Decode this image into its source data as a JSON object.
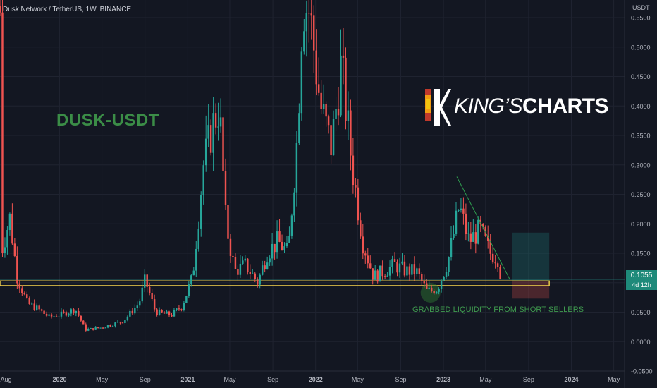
{
  "header": {
    "symbol_line": "Dusk Network / TetherUS, 1W, BINANCE"
  },
  "pair_label": "DUSK-USDT",
  "annotation": "GRABBED LIQUIDITY FROM SHORT SELLERS",
  "brand": {
    "light": "KING’S",
    "bold": "CHARTS"
  },
  "price_badge": {
    "price": "0.1055",
    "countdown": "4d 12h"
  },
  "colors": {
    "background": "#131722",
    "up": "#26a69a",
    "down": "#ef5350",
    "support": "#e8c84a",
    "label_green": "#3b8d47"
  },
  "chart_data": {
    "type": "candlestick",
    "yaxis": {
      "unit": "USDT",
      "range": [
        -0.05,
        0.58
      ],
      "ticks": [
        -0.05,
        0,
        0.05,
        0.1,
        0.15,
        0.2,
        0.25,
        0.3,
        0.35,
        0.4,
        0.45,
        0.5,
        0.55
      ],
      "tick_labels": [
        "-0.0500",
        "0.0000",
        "0.0500",
        "0.1000",
        "0.1500",
        "0.2000",
        "0.2500",
        "0.3000",
        "0.3500",
        "0.4000",
        "0.4500",
        "0.5000",
        "0.5500"
      ]
    },
    "xaxis": {
      "range": [
        "2019-07-15",
        "2024-06-01"
      ],
      "ticks": [
        {
          "date": "2019-08-01",
          "label": "Aug"
        },
        {
          "date": "2020-01-01",
          "label": "2020"
        },
        {
          "date": "2020-05-01",
          "label": "May"
        },
        {
          "date": "2020-09-01",
          "label": "Sep"
        },
        {
          "date": "2021-01-01",
          "label": "2021"
        },
        {
          "date": "2021-05-01",
          "label": "May"
        },
        {
          "date": "2021-09-01",
          "label": "Sep"
        },
        {
          "date": "2022-01-01",
          "label": "2022"
        },
        {
          "date": "2022-05-01",
          "label": "May"
        },
        {
          "date": "2022-09-01",
          "label": "Sep"
        },
        {
          "date": "2023-01-01",
          "label": "2023"
        },
        {
          "date": "2023-05-01",
          "label": "May"
        },
        {
          "date": "2023-09-01",
          "label": "Sep"
        },
        {
          "date": "2024-01-01",
          "label": "2024"
        },
        {
          "date": "2024-05-01",
          "label": "May"
        }
      ]
    },
    "close_path": [
      [
        "2019-07-15",
        0.56
      ],
      [
        "2019-07-22",
        0.16
      ],
      [
        "2019-08-12",
        0.21
      ],
      [
        "2019-09-02",
        0.11
      ],
      [
        "2019-10-01",
        0.065
      ],
      [
        "2019-11-01",
        0.055
      ],
      [
        "2019-12-01",
        0.042
      ],
      [
        "2020-01-01",
        0.045
      ],
      [
        "2020-02-15",
        0.055
      ],
      [
        "2020-03-15",
        0.02
      ],
      [
        "2020-05-01",
        0.024
      ],
      [
        "2020-07-01",
        0.035
      ],
      [
        "2020-08-15",
        0.065
      ],
      [
        "2020-09-01",
        0.105
      ],
      [
        "2020-10-01",
        0.05
      ],
      [
        "2020-11-15",
        0.045
      ],
      [
        "2020-12-15",
        0.06
      ],
      [
        "2021-01-15",
        0.11
      ],
      [
        "2021-02-15",
        0.3
      ],
      [
        "2021-03-15",
        0.37
      ],
      [
        "2021-04-01",
        0.4
      ],
      [
        "2021-04-20",
        0.2
      ],
      [
        "2021-05-15",
        0.12
      ],
      [
        "2021-06-15",
        0.13
      ],
      [
        "2021-07-20",
        0.1
      ],
      [
        "2021-08-15",
        0.15
      ],
      [
        "2021-09-15",
        0.17
      ],
      [
        "2021-10-15",
        0.15
      ],
      [
        "2021-11-10",
        0.35
      ],
      [
        "2021-11-25",
        0.58
      ],
      [
        "2021-12-15",
        0.56
      ],
      [
        "2022-01-15",
        0.4
      ],
      [
        "2022-02-15",
        0.33
      ],
      [
        "2022-03-15",
        0.47
      ],
      [
        "2022-04-15",
        0.3
      ],
      [
        "2022-05-15",
        0.17
      ],
      [
        "2022-06-15",
        0.11
      ],
      [
        "2022-08-15",
        0.13
      ],
      [
        "2022-09-15",
        0.12
      ],
      [
        "2022-10-15",
        0.12
      ],
      [
        "2022-11-15",
        0.085
      ],
      [
        "2022-12-15",
        0.09
      ],
      [
        "2023-01-15",
        0.14
      ],
      [
        "2023-02-15",
        0.23
      ],
      [
        "2023-03-15",
        0.17
      ],
      [
        "2023-04-15",
        0.19
      ],
      [
        "2023-05-15",
        0.15
      ],
      [
        "2023-06-10",
        0.14
      ],
      [
        "2023-06-18",
        0.1055
      ]
    ],
    "support_zone": {
      "low": 0.095,
      "high": 0.103,
      "from": "2019-07-15",
      "to": "2023-10-30"
    },
    "trendline": {
      "from": [
        "2023-02-08",
        0.28
      ],
      "to": [
        "2023-07-10",
        0.105
      ]
    },
    "long_position": {
      "from": "2023-07-15",
      "to": "2023-10-30",
      "entry": 0.103,
      "target": 0.185,
      "stop": 0.073
    },
    "highlight_circle": {
      "date": "2022-11-25",
      "price": 0.083
    },
    "last_price": 0.1055
  }
}
